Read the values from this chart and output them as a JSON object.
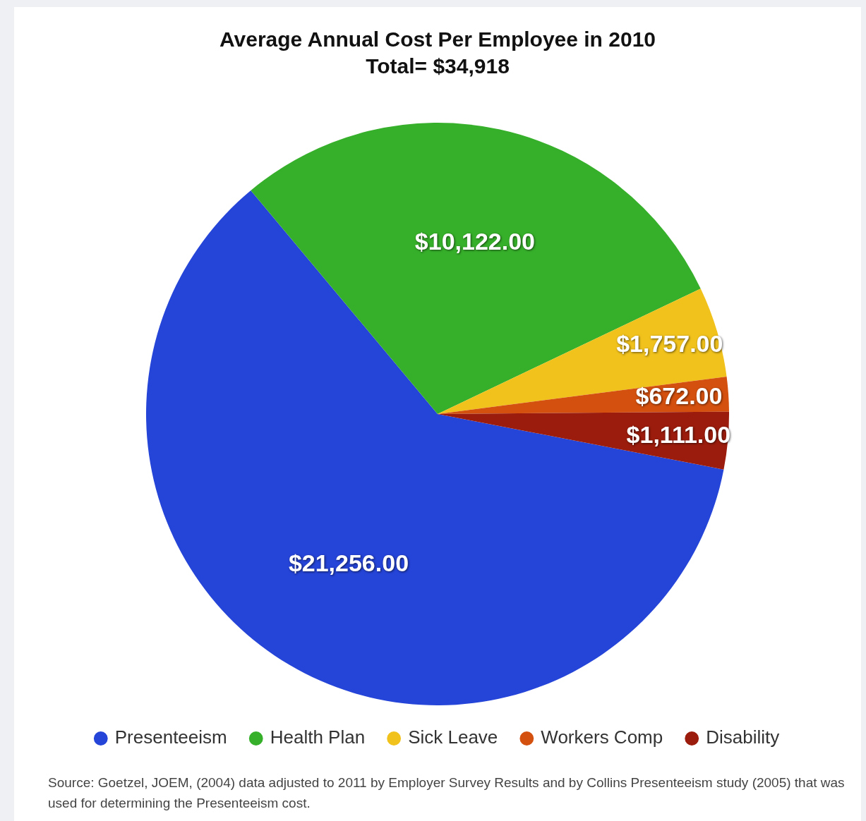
{
  "chart_data": {
    "type": "pie",
    "title": "Average Annual Cost Per Employee in 2010",
    "subtitle": "Total= $34,918",
    "categories": [
      "Presenteeism",
      "Health Plan",
      "Sick Leave",
      "Workers Comp",
      "Disability"
    ],
    "values": [
      21256,
      10122,
      1757,
      672,
      1111
    ],
    "colors": [
      "#2544d8",
      "#36b02a",
      "#f1c21c",
      "#d4500f",
      "#9b1c0c"
    ],
    "value_labels": [
      "$21,256.00",
      "$10,122.00",
      "$1,757.00",
      "$672.00",
      "$1,111.00"
    ],
    "legend": "bottom",
    "annotations": [
      "Source: Goetzel, JOEM, (2004) data adjusted to 2011 by Employer Survey Results and by Collins Presenteeism study (2005) that was used for determining the Presenteeism cost."
    ]
  }
}
